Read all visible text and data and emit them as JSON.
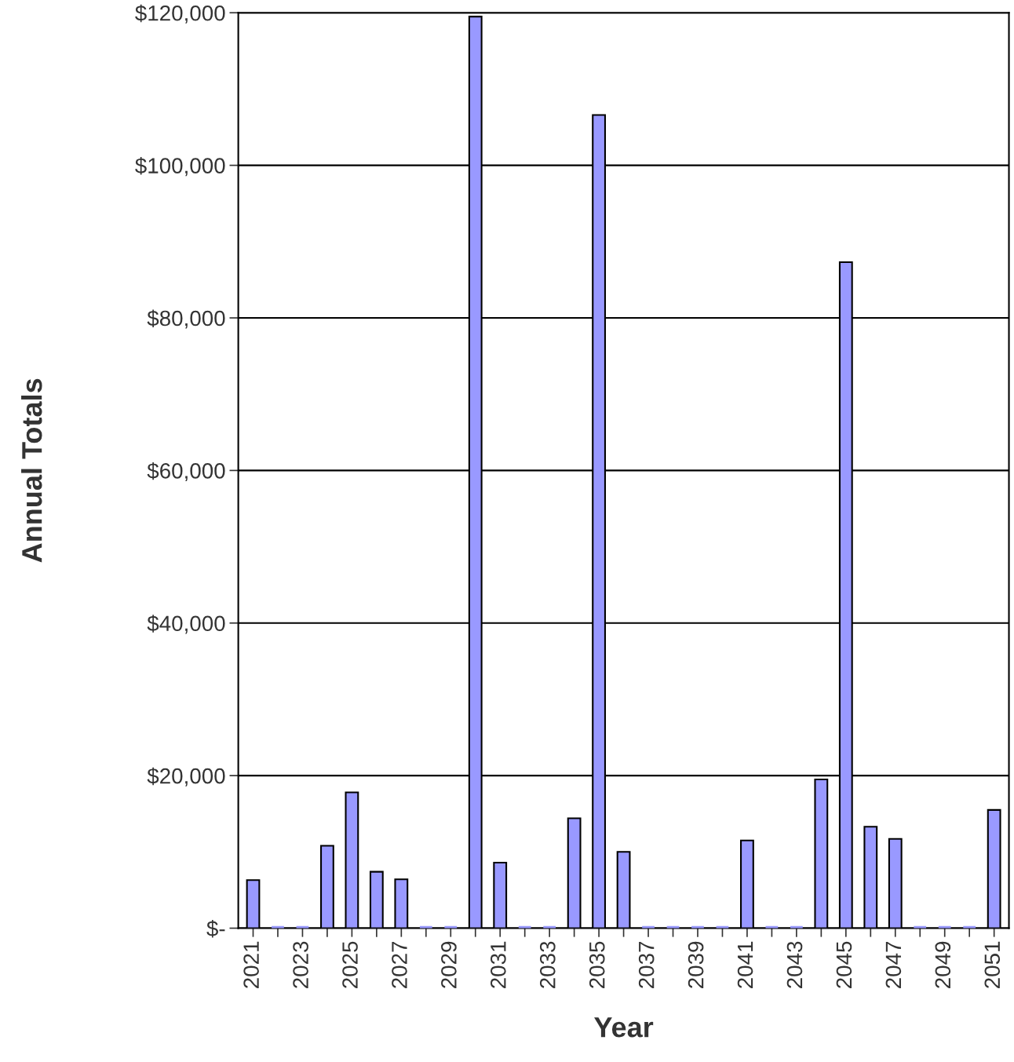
{
  "chart_data": {
    "type": "bar",
    "xlabel": "Year",
    "ylabel": "Annual Totals",
    "categories": [
      "2021",
      null,
      "2023",
      null,
      "2025",
      null,
      "2027",
      null,
      "2029",
      null,
      "2031",
      null,
      "2033",
      null,
      "2035",
      null,
      "2037",
      null,
      "2039",
      null,
      "2041",
      null,
      "2043",
      null,
      "2045",
      null,
      "2047",
      null,
      "2049",
      null,
      "2051"
    ],
    "values": [
      6300,
      0,
      0,
      10800,
      17800,
      7400,
      6400,
      0,
      0,
      119500,
      8600,
      0,
      0,
      14400,
      106600,
      10000,
      0,
      0,
      0,
      0,
      11500,
      0,
      0,
      19500,
      87300,
      13300,
      11700,
      0,
      0,
      0,
      15500
    ],
    "color": "#9999ff",
    "ylim": [
      0,
      120000
    ],
    "yticks": [
      {
        "value": 0,
        "label": "$-"
      },
      {
        "value": 20000,
        "label": "$20,000"
      },
      {
        "value": 40000,
        "label": "$40,000"
      },
      {
        "value": 60000,
        "label": "$60,000"
      },
      {
        "value": 80000,
        "label": "$80,000"
      },
      {
        "value": 100000,
        "label": "$100,000"
      },
      {
        "value": 120000,
        "label": "$120,000"
      }
    ],
    "grid": "y",
    "legend": false
  }
}
